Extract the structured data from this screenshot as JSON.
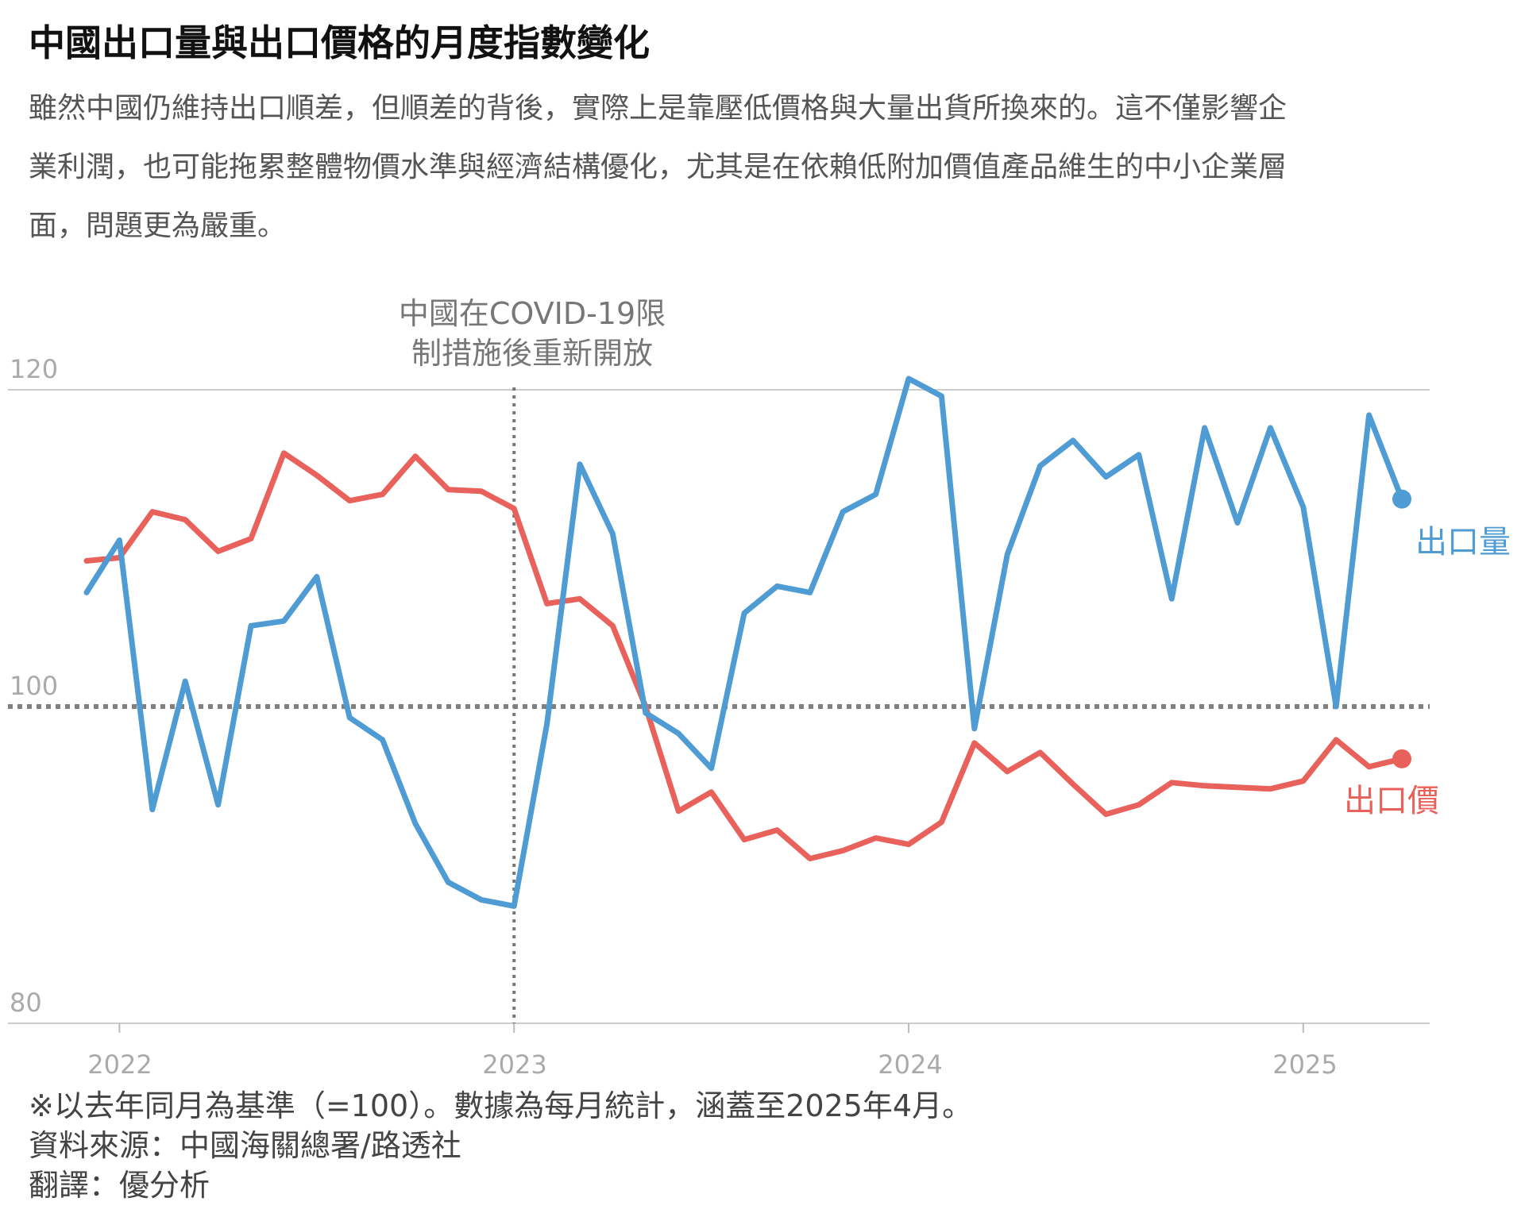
{
  "title": "中國出口量與出口價格的月度指數變化",
  "description": [
    "雖然中國仍維持出口順差，但順差的背後，實際上是靠壓低價格與大量出貨所換來的。這不僅影響企",
    "業利潤，也可能拖累整體物價水準與經濟結構優化，尤其是在依賴低附加價值產品維生的中小企業層",
    "面，問題更為嚴重。"
  ],
  "annotation": [
    "中國在COVID-19限",
    "制措施後重新開放"
  ],
  "footnotes": {
    "note": "※以去年同月為基準（=100）。數據為每月統計，涵蓋至2025年4月。",
    "source": "資料來源：中國海關總署/路透社",
    "translation": "翻譯：優分析"
  },
  "colors": {
    "volume": "#4f9bd3",
    "price": "#e8625b",
    "grid": "#cccccc",
    "axis_text": "#aaaaaa",
    "annotation": "#777777"
  },
  "chart_data": {
    "type": "line",
    "x": [
      "2021-12",
      "2022-01",
      "2022-02",
      "2022-03",
      "2022-04",
      "2022-05",
      "2022-06",
      "2022-07",
      "2022-08",
      "2022-09",
      "2022-10",
      "2022-11",
      "2022-12",
      "2023-01",
      "2023-02",
      "2023-03",
      "2023-04",
      "2023-05",
      "2023-06",
      "2023-07",
      "2023-08",
      "2023-09",
      "2023-10",
      "2023-11",
      "2023-12",
      "2024-01",
      "2024-02",
      "2024-03",
      "2024-04",
      "2024-05",
      "2024-06",
      "2024-07",
      "2024-08",
      "2024-09",
      "2024-10",
      "2024-11",
      "2024-12",
      "2025-01",
      "2025-02",
      "2025-03",
      "2025-04"
    ],
    "series": [
      {
        "name": "出口量",
        "values": [
          107.2,
          110.5,
          93.5,
          101.6,
          93.8,
          105.1,
          105.4,
          108.2,
          99.3,
          97.9,
          92.6,
          88.9,
          87.8,
          87.4,
          98.9,
          115.3,
          110.9,
          99.6,
          98.3,
          96.1,
          105.9,
          107.6,
          107.2,
          112.3,
          113.4,
          120.7,
          119.6,
          98.6,
          109.6,
          115.2,
          116.8,
          114.5,
          115.9,
          106.8,
          117.6,
          111.6,
          117.6,
          112.6,
          100.0,
          118.4,
          113.1
        ]
      },
      {
        "name": "出口價",
        "values": [
          109.2,
          109.4,
          112.3,
          111.8,
          109.8,
          110.6,
          116.0,
          114.6,
          113.0,
          113.4,
          115.8,
          113.7,
          113.6,
          112.5,
          106.5,
          106.8,
          105.1,
          100.0,
          93.4,
          94.6,
          91.6,
          92.2,
          90.4,
          90.9,
          91.7,
          91.3,
          92.7,
          97.7,
          95.9,
          97.1,
          95.1,
          93.2,
          93.8,
          95.2,
          95.0,
          94.9,
          94.8,
          95.3,
          97.9,
          96.2,
          96.7
        ]
      }
    ],
    "events": [
      {
        "x": "2023-01"
      }
    ],
    "reference_line": 100,
    "ylim": [
      80,
      120
    ],
    "yticks": [
      80,
      100,
      120
    ],
    "xticks": [
      "2022",
      "2023",
      "2024",
      "2025"
    ],
    "xlabel": "",
    "ylabel": "",
    "grid": true
  }
}
